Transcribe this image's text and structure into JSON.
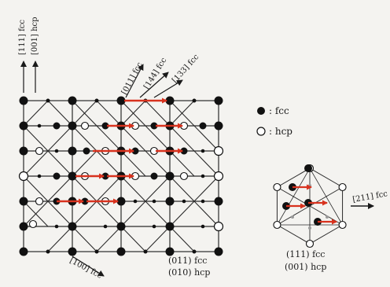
{
  "labels": {
    "dir_111_fcc": "[111] fcc",
    "dir_001_hcp": "[001] hcp",
    "dir_011_fcc": "[011] fcc",
    "dir_144_fcc": "[144] fcc",
    "dir_133_fcc": "[133] fcc",
    "dir_100_fcc": "[100] fcc",
    "plane_main_fcc": "(011) fcc",
    "plane_main_hcp": "(010) hcp",
    "plane_small_fcc": "(111) fcc",
    "plane_small_hcp": "(001) hcp",
    "dir_211_fcc": "[211] fcc"
  },
  "legend": {
    "fcc_label": ": fcc",
    "hcp_label": ": hcp"
  },
  "colors": {
    "line": "#2a2a2a",
    "atom": "#111111",
    "open_atom": "#ffffff",
    "arrow_red": "#d8321e",
    "background": "#f4f3f0",
    "gray_dot": "#9a9a9a"
  }
}
